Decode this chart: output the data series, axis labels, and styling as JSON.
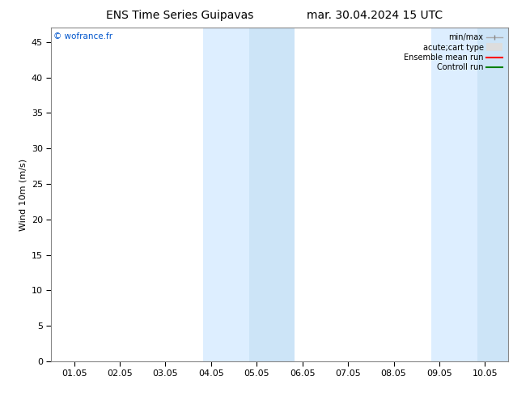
{
  "title_left": "ENS Time Series Guipavas",
  "title_right": "mar. 30.04.2024 15 UTC",
  "ylabel": "Wind 10m (m/s)",
  "watermark": "© wofrance.fr",
  "ylim": [
    0,
    47
  ],
  "yticks": [
    0,
    5,
    10,
    15,
    20,
    25,
    30,
    35,
    40,
    45
  ],
  "xtick_labels": [
    "01.05",
    "02.05",
    "03.05",
    "04.05",
    "05.05",
    "06.05",
    "07.05",
    "08.05",
    "09.05",
    "10.05"
  ],
  "xtick_positions": [
    0,
    1,
    2,
    3,
    4,
    5,
    6,
    7,
    8,
    9
  ],
  "xmin": -0.5,
  "xmax": 9.5,
  "shaded_bands": [
    {
      "xmin": 2.83,
      "xmax": 3.83,
      "color": "#ddeeff"
    },
    {
      "xmin": 3.83,
      "xmax": 4.83,
      "color": "#cce4f7"
    },
    {
      "xmin": 7.83,
      "xmax": 8.83,
      "color": "#ddeeff"
    },
    {
      "xmin": 8.83,
      "xmax": 9.5,
      "color": "#cce4f7"
    }
  ],
  "bg_color": "#ffffff",
  "plot_bg_color": "#ffffff",
  "title_fontsize": 10,
  "axis_fontsize": 8,
  "watermark_color": "#0055cc",
  "spine_color": "#888888"
}
